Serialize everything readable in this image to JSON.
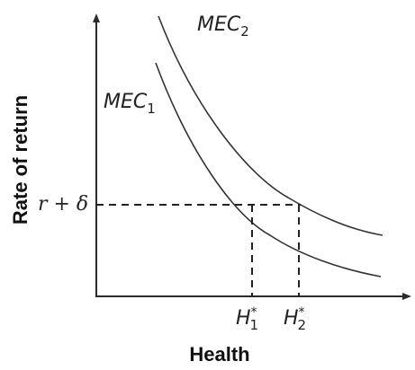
{
  "chart_data": {
    "type": "line",
    "xlabel": "Health",
    "ylabel": "Rate of return",
    "series": [
      {
        "name": "MEC_1",
        "label_main": "MEC",
        "label_sub": "1"
      },
      {
        "name": "MEC_2",
        "label_main": "MEC",
        "label_sub": "2"
      }
    ],
    "y_marker": {
      "label": "r + δ"
    },
    "x_markers": [
      {
        "main": "H",
        "sup": "*",
        "sub": "1"
      },
      {
        "main": "H",
        "sup": "*",
        "sub": "2"
      }
    ],
    "grid": false,
    "axis_ticks": false
  }
}
